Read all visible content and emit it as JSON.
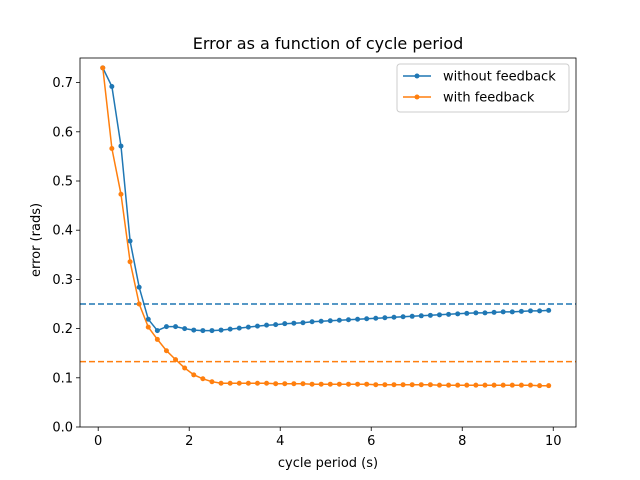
{
  "chart_data": {
    "type": "line",
    "title": "Error as a function of cycle period",
    "xlabel": "cycle period (s)",
    "ylabel": "error (rads)",
    "xlim": [
      -0.4,
      10.5
    ],
    "ylim": [
      0.0,
      0.75
    ],
    "xticks": [
      0,
      2,
      4,
      6,
      8,
      10
    ],
    "xtick_labels": [
      "0",
      "2",
      "4",
      "6",
      "8",
      "10"
    ],
    "yticks": [
      0.0,
      0.1,
      0.2,
      0.3,
      0.4,
      0.5,
      0.6,
      0.7
    ],
    "ytick_labels": [
      "0.0",
      "0.1",
      "0.2",
      "0.3",
      "0.4",
      "0.5",
      "0.6",
      "0.7"
    ],
    "grid": false,
    "legend_position": "top-right",
    "x": [
      0.1,
      0.3,
      0.5,
      0.7,
      0.9,
      1.1,
      1.3,
      1.5,
      1.7,
      1.9,
      2.1,
      2.3,
      2.5,
      2.7,
      2.9,
      3.1,
      3.3,
      3.5,
      3.7,
      3.9,
      4.1,
      4.3,
      4.5,
      4.7,
      4.9,
      5.1,
      5.3,
      5.5,
      5.7,
      5.9,
      6.1,
      6.3,
      6.5,
      6.7,
      6.9,
      7.1,
      7.3,
      7.5,
      7.7,
      7.9,
      8.1,
      8.3,
      8.5,
      8.7,
      8.9,
      9.1,
      9.3,
      9.5,
      9.7,
      9.9
    ],
    "series": [
      {
        "name": "without feedback",
        "color": "#1f77b4",
        "values": [
          0.73,
          0.692,
          0.571,
          0.378,
          0.284,
          0.219,
          0.196,
          0.204,
          0.204,
          0.2,
          0.197,
          0.196,
          0.196,
          0.197,
          0.199,
          0.201,
          0.203,
          0.205,
          0.207,
          0.208,
          0.21,
          0.211,
          0.212,
          0.214,
          0.215,
          0.216,
          0.217,
          0.218,
          0.219,
          0.22,
          0.221,
          0.222,
          0.223,
          0.224,
          0.225,
          0.226,
          0.227,
          0.228,
          0.229,
          0.23,
          0.231,
          0.232,
          0.232,
          0.233,
          0.234,
          0.234,
          0.235,
          0.236,
          0.236,
          0.237
        ]
      },
      {
        "name": "with feedback",
        "color": "#ff7f0e",
        "values": [
          0.73,
          0.566,
          0.473,
          0.336,
          0.25,
          0.203,
          0.178,
          0.155,
          0.137,
          0.12,
          0.106,
          0.098,
          0.092,
          0.089,
          0.089,
          0.089,
          0.089,
          0.089,
          0.089,
          0.088,
          0.088,
          0.088,
          0.088,
          0.087,
          0.087,
          0.087,
          0.087,
          0.087,
          0.087,
          0.087,
          0.086,
          0.086,
          0.086,
          0.086,
          0.086,
          0.086,
          0.086,
          0.085,
          0.085,
          0.085,
          0.085,
          0.085,
          0.085,
          0.085,
          0.085,
          0.085,
          0.085,
          0.085,
          0.084,
          0.084
        ]
      }
    ],
    "reference_lines": [
      {
        "axis": "y",
        "value": 0.25,
        "color": "#1f77b4",
        "style": "dashed"
      },
      {
        "axis": "y",
        "value": 0.133,
        "color": "#ff7f0e",
        "style": "dashed"
      }
    ]
  }
}
